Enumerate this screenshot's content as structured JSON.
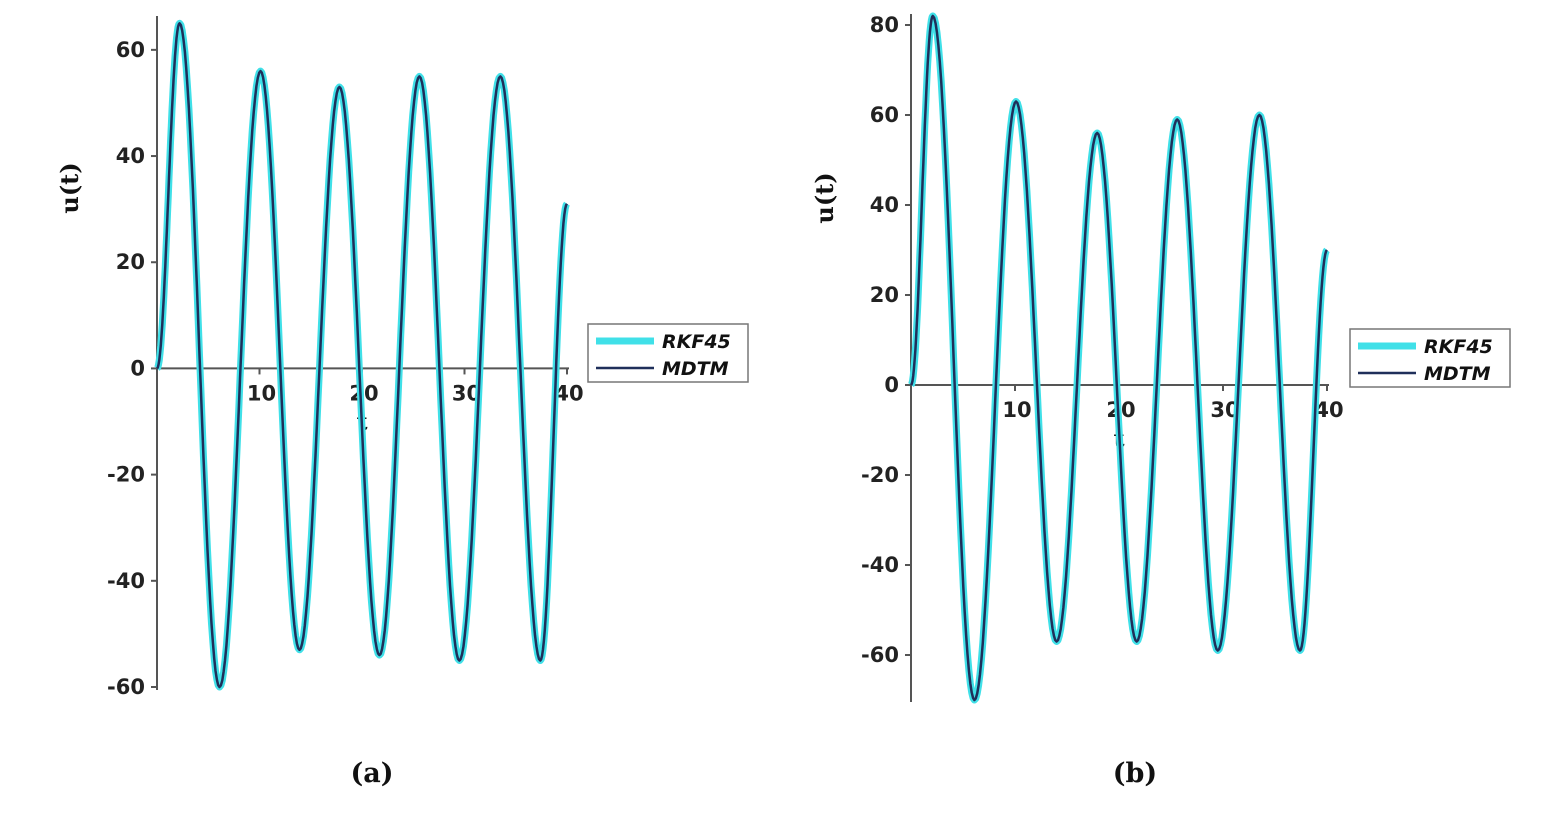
{
  "chart_data": [
    {
      "type": "line",
      "caption": "(a)",
      "xlabel": "t",
      "ylabel": "u(t)",
      "xlim": [
        0,
        40
      ],
      "ylim": [
        -60,
        66
      ],
      "xticks": [
        10,
        20,
        30,
        40
      ],
      "yticks": [
        -60,
        -40,
        -20,
        0,
        20,
        40,
        60
      ],
      "legend_position": "right",
      "series": [
        {
          "name": "RKF45",
          "color": "#40E0E8",
          "x": [
            0,
            2.2,
            6.1,
            10.1,
            13.9,
            17.8,
            21.7,
            25.6,
            29.5,
            33.5,
            37.4,
            40
          ],
          "y": [
            0,
            65,
            -60,
            56,
            -53,
            53,
            -54,
            55,
            -55,
            55,
            -55,
            31
          ]
        },
        {
          "name": "MDTM",
          "color": "#1f2f5a",
          "x": [
            0,
            2.2,
            6.1,
            10.1,
            13.9,
            17.8,
            21.7,
            25.6,
            29.5,
            33.5,
            37.4,
            40
          ],
          "y": [
            0,
            65,
            -60,
            56,
            -53,
            53,
            -54,
            55,
            -55,
            55,
            -55,
            31
          ]
        }
      ]
    },
    {
      "type": "line",
      "caption": "(b)",
      "xlabel": "t",
      "ylabel": "u(t)",
      "xlim": [
        0,
        40
      ],
      "ylim": [
        -70,
        82
      ],
      "xticks": [
        10,
        20,
        30,
        40
      ],
      "yticks": [
        -60,
        -40,
        -20,
        0,
        20,
        40,
        60,
        80
      ],
      "legend_position": "right",
      "series": [
        {
          "name": "RKF45",
          "color": "#40E0E8",
          "x": [
            0,
            2.1,
            6.1,
            10.1,
            14.0,
            17.9,
            21.7,
            25.6,
            29.5,
            33.5,
            37.4,
            40
          ],
          "y": [
            0,
            82,
            -70,
            63,
            -57,
            56,
            -57,
            59,
            -59,
            60,
            -59,
            30
          ]
        },
        {
          "name": "MDTM",
          "color": "#1f2f5a",
          "x": [
            0,
            2.1,
            6.1,
            10.1,
            14.0,
            17.9,
            21.7,
            25.6,
            29.5,
            33.5,
            37.4,
            40
          ],
          "y": [
            0,
            82,
            -70,
            63,
            -57,
            56,
            -57,
            59,
            -59,
            60,
            -59,
            30
          ]
        }
      ]
    }
  ]
}
